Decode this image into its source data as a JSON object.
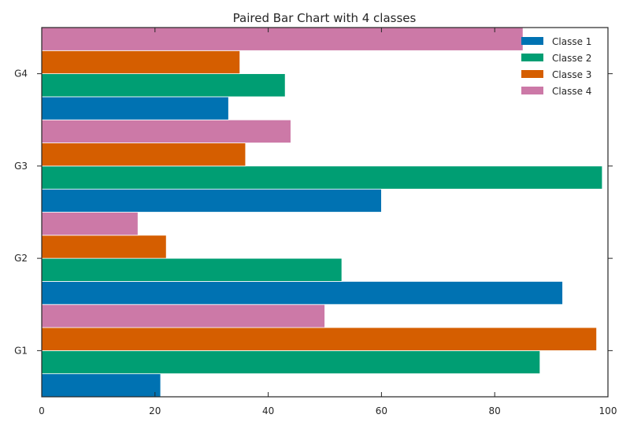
{
  "chart_data": {
    "type": "bar",
    "orientation": "horizontal",
    "title": "Paired Bar Chart with 4 classes",
    "xlabel": "",
    "ylabel": "",
    "categories": [
      "G1",
      "G2",
      "G3",
      "G4"
    ],
    "series": [
      {
        "name": "Classe 1",
        "color": "#0072b2",
        "values": [
          21,
          92,
          60,
          33
        ]
      },
      {
        "name": "Classe 2",
        "color": "#009e73",
        "values": [
          88,
          53,
          99,
          43
        ]
      },
      {
        "name": "Classe 3",
        "color": "#d55e00",
        "values": [
          98,
          22,
          36,
          35
        ]
      },
      {
        "name": "Classe 4",
        "color": "#cc79a7",
        "values": [
          50,
          17,
          44,
          85
        ]
      }
    ],
    "xlim": [
      0,
      100
    ],
    "xticks": [
      "0",
      "20",
      "40",
      "60",
      "80",
      "100"
    ],
    "grid": false,
    "legend_position": "top-right"
  }
}
